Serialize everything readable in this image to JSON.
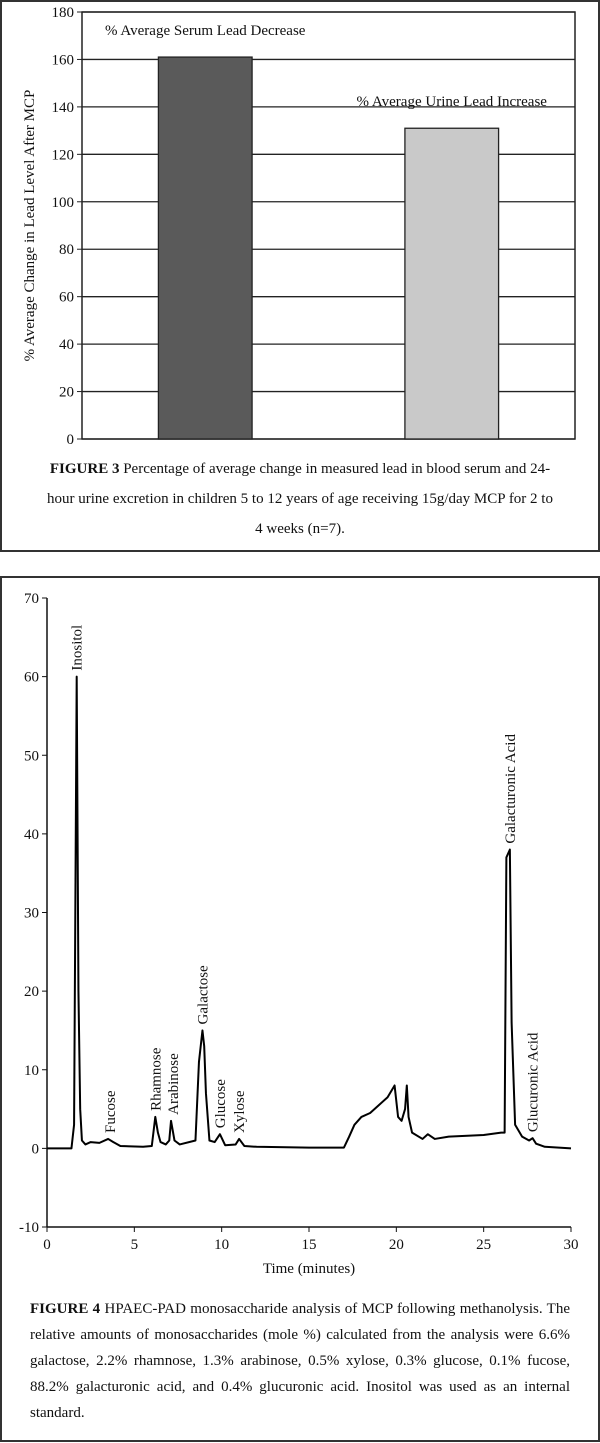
{
  "chart_data": [
    {
      "type": "bar",
      "ylabel": "% Average Change in Lead Level After MCP",
      "categories": [
        "% Average Serum Lead Decrease",
        "% Average Urine Lead Increase"
      ],
      "values": [
        161,
        131
      ],
      "colors": [
        "#5a5a5a",
        "#c9c9c9"
      ],
      "ylim": [
        0,
        180
      ],
      "yticks": [
        0,
        20,
        40,
        60,
        80,
        100,
        120,
        140,
        160,
        180
      ],
      "grid": true,
      "caption_label": "FIGURE 3",
      "caption": "Percentage of average change in measured lead in blood serum and 24-hour urine excretion in children 5 to 12 years of age receiving 15g/day MCP for 2 to 4 weeks (n=7)."
    },
    {
      "type": "line",
      "xlabel": "Time (minutes)",
      "color": "#000000",
      "x": [
        0,
        1.4,
        1.55,
        1.7,
        1.8,
        1.9,
        2.0,
        2.2,
        2.5,
        3.0,
        3.5,
        3.8,
        4.2,
        5.5,
        6.0,
        6.2,
        6.35,
        6.5,
        6.8,
        7.0,
        7.1,
        7.3,
        7.6,
        8.5,
        8.7,
        8.9,
        9.0,
        9.1,
        9.3,
        9.6,
        9.9,
        10.2,
        10.8,
        11.0,
        11.3,
        12,
        15,
        17,
        17.3,
        17.6,
        18,
        18.5,
        19,
        19.5,
        19.9,
        20.1,
        20.3,
        20.5,
        20.6,
        20.7,
        20.9,
        21.5,
        21.8,
        22.2,
        23,
        25,
        26,
        26.2,
        26.3,
        26.5,
        26.6,
        26.8,
        27.2,
        27.6,
        27.8,
        28,
        28.5,
        30
      ],
      "values": [
        0,
        0,
        3,
        60,
        20,
        5,
        1,
        0.5,
        0.8,
        0.7,
        1.2,
        0.8,
        0.3,
        0.2,
        0.3,
        4,
        2,
        0.8,
        0.5,
        1,
        3.5,
        1,
        0.5,
        1,
        11,
        15,
        13,
        7,
        1,
        0.8,
        1.8,
        0.4,
        0.5,
        1.2,
        0.3,
        0.2,
        0.1,
        0.1,
        1.5,
        3,
        4,
        4.5,
        5.5,
        6.5,
        8,
        4,
        3.5,
        5,
        8,
        4,
        2,
        1.2,
        1.8,
        1.2,
        1.5,
        1.7,
        2,
        2,
        37,
        38,
        16,
        3,
        1.5,
        1,
        1.3,
        0.6,
        0.2,
        0
      ],
      "xlim": [
        0,
        30
      ],
      "xticks": [
        0,
        5,
        10,
        15,
        20,
        25,
        30
      ],
      "ylim": [
        -10,
        70
      ],
      "yticks": [
        -10,
        0,
        10,
        20,
        30,
        40,
        50,
        60,
        70
      ],
      "annotations": [
        {
          "text": "Inositol",
          "x": 1.7
        },
        {
          "text": "Fucose",
          "x": 3.6
        },
        {
          "text": "Rhamnose",
          "x": 6.2
        },
        {
          "text": "Arabinose",
          "x": 7.2
        },
        {
          "text": "Galactose",
          "x": 8.9
        },
        {
          "text": "Glucose",
          "x": 9.9
        },
        {
          "text": "Xylose",
          "x": 11.0
        },
        {
          "text": "Galacturonic Acid",
          "x": 26.5
        },
        {
          "text": "Glucuronic Acid",
          "x": 27.8
        }
      ],
      "caption_label": "FIGURE 4",
      "caption": "HPAEC-PAD monosaccharide analysis of MCP following methanolysis. The relative amounts of monosaccharides (mole %) calculated from the analysis were 6.6% galactose, 2.2% rhamnose, 1.3% arabinose, 0.5% xylose, 0.3% glucose, 0.1% fucose, 88.2% galacturonic acid, and 0.4% glucuronic acid. Inositol was used as an internal standard."
    }
  ]
}
